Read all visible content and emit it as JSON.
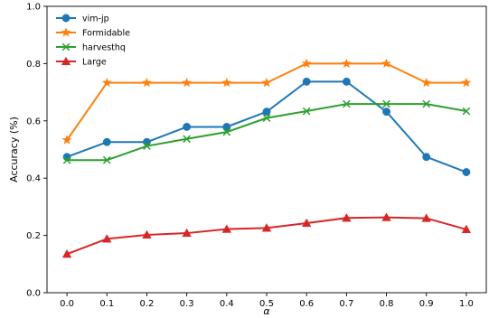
{
  "chart_data": {
    "type": "line",
    "title": "",
    "xlabel": "α",
    "ylabel": "Accuracy (%)",
    "x": [
      0.0,
      0.1,
      0.2,
      0.3,
      0.4,
      0.5,
      0.6,
      0.7,
      0.8,
      0.9,
      1.0
    ],
    "x_tick_labels": [
      "0.0",
      "0.1",
      "0.2",
      "0.3",
      "0.4",
      "0.5",
      "0.6",
      "0.7",
      "0.8",
      "0.9",
      "1.0"
    ],
    "y_tick_labels": [
      "0.0",
      "0.2",
      "0.4",
      "0.6",
      "0.8",
      "1.0"
    ],
    "y_ticks": [
      0.0,
      0.2,
      0.4,
      0.6,
      0.8,
      1.0
    ],
    "xlim": [
      -0.05,
      1.05
    ],
    "ylim": [
      0.0,
      1.0
    ],
    "grid": false,
    "legend_position": "top-left",
    "series": [
      {
        "name": "vim-jp",
        "color": "#1f77b4",
        "marker": "circle",
        "values": [
          0.474,
          0.526,
          0.526,
          0.579,
          0.579,
          0.632,
          0.737,
          0.737,
          0.632,
          0.474,
          0.421
        ]
      },
      {
        "name": "Formidable",
        "color": "#ff7f0e",
        "marker": "star",
        "values": [
          0.533,
          0.733,
          0.733,
          0.733,
          0.733,
          0.733,
          0.8,
          0.8,
          0.8,
          0.733,
          0.733
        ]
      },
      {
        "name": "harvesthq",
        "color": "#2ca02c",
        "marker": "x",
        "values": [
          0.463,
          0.463,
          0.512,
          0.537,
          0.561,
          0.61,
          0.634,
          0.659,
          0.659,
          0.659,
          0.634
        ]
      },
      {
        "name": "Large",
        "color": "#d62728",
        "marker": "triangle",
        "values": [
          0.135,
          0.188,
          0.202,
          0.208,
          0.222,
          0.226,
          0.243,
          0.261,
          0.263,
          0.26,
          0.221
        ]
      }
    ]
  }
}
